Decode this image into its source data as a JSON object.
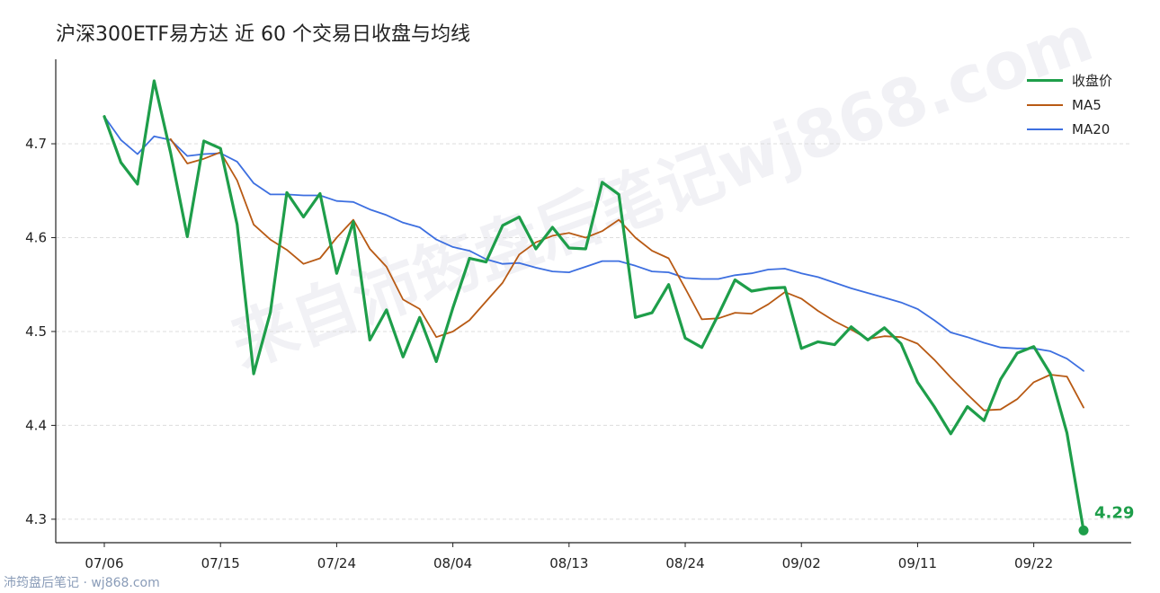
{
  "title": "沪深300ETF易方达 近 60 个交易日收盘与均线",
  "footer": "沛筠盘后笔记 · wj868.com",
  "watermark": "来自沛筠盘后笔记wj868.com",
  "colors": {
    "close": "#1e9e4a",
    "ma5": "#b85a14",
    "ma20": "#3d6fe0",
    "grid": "#dddddd",
    "axis": "#222222"
  },
  "chart_data": {
    "type": "line",
    "title": "沪深300ETF易方达 近 60 个交易日收盘与均线",
    "xlabel": "",
    "ylabel": "",
    "ylim": [
      4.275,
      4.79
    ],
    "yticks": [
      4.3,
      4.4,
      4.5,
      4.6,
      4.7
    ],
    "ytick_labels": [
      "4.3",
      "4.4",
      "4.5",
      "4.6",
      "4.7"
    ],
    "xticks": [
      {
        "index": 0,
        "label": "07/06"
      },
      {
        "index": 7,
        "label": "07/15"
      },
      {
        "index": 14,
        "label": "07/24"
      },
      {
        "index": 21,
        "label": "08/04"
      },
      {
        "index": 28,
        "label": "08/13"
      },
      {
        "index": 35,
        "label": "08/24"
      },
      {
        "index": 42,
        "label": "09/02"
      },
      {
        "index": 49,
        "label": "09/11"
      },
      {
        "index": 56,
        "label": "09/22"
      }
    ],
    "grid": true,
    "legend_position": "top-right",
    "last_value_label": "4.29",
    "series": [
      {
        "name": "收盘价",
        "key": "close",
        "values": [
          4.729,
          4.68,
          4.657,
          4.767,
          4.69,
          4.601,
          4.703,
          4.695,
          4.614,
          4.455,
          4.52,
          4.648,
          4.622,
          4.647,
          4.562,
          4.617,
          4.491,
          4.523,
          4.473,
          4.515,
          4.468,
          4.525,
          4.578,
          4.574,
          4.613,
          4.622,
          4.588,
          4.611,
          4.589,
          4.588,
          4.659,
          4.646,
          4.515,
          4.52,
          4.55,
          4.493,
          4.483,
          4.518,
          4.555,
          4.543,
          4.546,
          4.547,
          4.482,
          4.489,
          4.486,
          4.505,
          4.491,
          4.504,
          4.487,
          4.446,
          4.42,
          4.391,
          4.42,
          4.405,
          4.449,
          4.477,
          4.484,
          4.455,
          4.392,
          4.288
        ]
      },
      {
        "name": "MA5",
        "key": "ma5",
        "values": [
          null,
          null,
          null,
          null,
          4.705,
          4.679,
          4.684,
          4.691,
          4.661,
          4.614,
          4.598,
          4.587,
          4.572,
          4.578,
          4.6,
          4.619,
          4.588,
          4.569,
          4.534,
          4.524,
          4.494,
          4.5,
          4.512,
          4.532,
          4.552,
          4.582,
          4.595,
          4.602,
          4.605,
          4.6,
          4.607,
          4.619,
          4.6,
          4.586,
          4.578,
          4.546,
          4.513,
          4.514,
          4.52,
          4.519,
          4.529,
          4.542,
          4.535,
          4.522,
          4.511,
          4.502,
          4.492,
          4.495,
          4.494,
          4.487,
          4.47,
          4.451,
          4.433,
          4.416,
          4.417,
          4.428,
          4.446,
          4.454,
          4.452,
          4.419
        ]
      },
      {
        "name": "MA20",
        "key": "ma20",
        "values": [
          4.729,
          4.704,
          4.689,
          4.708,
          4.704,
          4.687,
          4.689,
          4.69,
          4.681,
          4.658,
          4.646,
          4.646,
          4.645,
          4.645,
          4.639,
          4.638,
          4.63,
          4.624,
          4.616,
          4.611,
          4.598,
          4.59,
          4.586,
          4.577,
          4.572,
          4.573,
          4.568,
          4.564,
          4.563,
          4.569,
          4.575,
          4.575,
          4.57,
          4.564,
          4.563,
          4.557,
          4.556,
          4.556,
          4.56,
          4.562,
          4.566,
          4.567,
          4.562,
          4.558,
          4.552,
          4.546,
          4.541,
          4.536,
          4.531,
          4.524,
          4.512,
          4.499,
          4.494,
          4.488,
          4.483,
          4.482,
          4.482,
          4.479,
          4.471,
          4.458
        ]
      }
    ]
  }
}
